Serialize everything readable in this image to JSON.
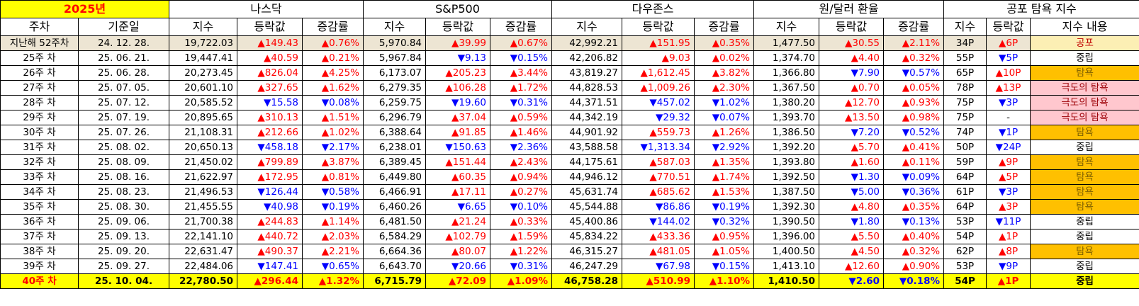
{
  "header": {
    "year": "2025년",
    "groups": [
      "나스닥",
      "S&P500",
      "다우존스",
      "원/달러 환율",
      "공포 탐욕 지수"
    ],
    "week_col": "주차",
    "date_col": "기준일",
    "index_col": "지수",
    "change_col": "등락값",
    "rate_col": "증감률",
    "fg_content_col": "지수 내용"
  },
  "rows": [
    {
      "week": "지난해 52주차",
      "date": "24. 12. 28.",
      "nasdaq": {
        "idx": "19,722.03",
        "chg": "▲149.43",
        "rate": "▲0.76%"
      },
      "sp500": {
        "idx": "5,970.84",
        "chg": "▲39.99",
        "rate": "▲0.67%"
      },
      "dow": {
        "idx": "42,992.21",
        "chg": "▲151.95",
        "rate": "▲0.35%"
      },
      "krw": {
        "idx": "1,477.50",
        "chg": "▲30.55",
        "rate": "▲2.11%"
      },
      "fg": {
        "idx": "34P",
        "chg": "▲6P",
        "text": "공포",
        "state": "fear"
      }
    },
    {
      "week": "25주 차",
      "date": "25. 06. 21.",
      "nasdaq": {
        "idx": "19,447.41",
        "chg": "▲40.59",
        "rate": "▲0.21%"
      },
      "sp500": {
        "idx": "5,967.84",
        "chg": "▼9.13",
        "rate": "▼0.15%"
      },
      "dow": {
        "idx": "42,206.82",
        "chg": "▲9.03",
        "rate": "▲0.02%"
      },
      "krw": {
        "idx": "1,374.70",
        "chg": "▲4.40",
        "rate": "▲0.32%"
      },
      "fg": {
        "idx": "55P",
        "chg": "▼5P",
        "text": "중립",
        "state": "neutral"
      }
    },
    {
      "week": "26주 차",
      "date": "25. 06. 28.",
      "nasdaq": {
        "idx": "20,273.45",
        "chg": "▲826.04",
        "rate": "▲4.25%"
      },
      "sp500": {
        "idx": "6,173.07",
        "chg": "▲205.23",
        "rate": "▲3.44%"
      },
      "dow": {
        "idx": "43,819.27",
        "chg": "▲1,612.45",
        "rate": "▲3.82%"
      },
      "krw": {
        "idx": "1,366.80",
        "chg": "▼7.90",
        "rate": "▼0.57%"
      },
      "fg": {
        "idx": "65P",
        "chg": "▲10P",
        "text": "탐욕",
        "state": "greed"
      }
    },
    {
      "week": "27주 차",
      "date": "25. 07. 05.",
      "nasdaq": {
        "idx": "20,601.10",
        "chg": "▲327.65",
        "rate": "▲1.62%"
      },
      "sp500": {
        "idx": "6,279.35",
        "chg": "▲106.28",
        "rate": "▲1.72%"
      },
      "dow": {
        "idx": "44,828.53",
        "chg": "▲1,009.26",
        "rate": "▲2.30%"
      },
      "krw": {
        "idx": "1,367.50",
        "chg": "▲0.70",
        "rate": "▲0.05%"
      },
      "fg": {
        "idx": "78P",
        "chg": "▲13P",
        "text": "극도의 탐욕",
        "state": "xgreed"
      }
    },
    {
      "week": "28주 차",
      "date": "25. 07. 12.",
      "nasdaq": {
        "idx": "20,585.52",
        "chg": "▼15.58",
        "rate": "▼0.08%"
      },
      "sp500": {
        "idx": "6,259.75",
        "chg": "▼19.60",
        "rate": "▼0.31%"
      },
      "dow": {
        "idx": "44,371.51",
        "chg": "▼457.02",
        "rate": "▼1.02%"
      },
      "krw": {
        "idx": "1,380.20",
        "chg": "▲12.70",
        "rate": "▲0.93%"
      },
      "fg": {
        "idx": "75P",
        "chg": "▼3P",
        "text": "극도의 탐욕",
        "state": "xgreed"
      }
    },
    {
      "week": "29주 차",
      "date": "25. 07. 19.",
      "nasdaq": {
        "idx": "20,895.65",
        "chg": "▲310.13",
        "rate": "▲1.51%"
      },
      "sp500": {
        "idx": "6,296.79",
        "chg": "▲37.04",
        "rate": "▲0.59%"
      },
      "dow": {
        "idx": "44,342.19",
        "chg": "▼29.32",
        "rate": "▼0.07%"
      },
      "krw": {
        "idx": "1,393.70",
        "chg": "▲13.50",
        "rate": "▲0.98%"
      },
      "fg": {
        "idx": "75P",
        "chg": "-",
        "text": "극도의 탐욕",
        "state": "xgreed"
      }
    },
    {
      "week": "30주 차",
      "date": "25. 07. 26.",
      "nasdaq": {
        "idx": "21,108.31",
        "chg": "▲212.66",
        "rate": "▲1.02%"
      },
      "sp500": {
        "idx": "6,388.64",
        "chg": "▲91.85",
        "rate": "▲1.46%"
      },
      "dow": {
        "idx": "44,901.92",
        "chg": "▲559.73",
        "rate": "▲1.26%"
      },
      "krw": {
        "idx": "1,386.50",
        "chg": "▼7.20",
        "rate": "▼0.52%"
      },
      "fg": {
        "idx": "74P",
        "chg": "▼1P",
        "text": "탐욕",
        "state": "greed"
      }
    },
    {
      "week": "31주 차",
      "date": "25. 08. 02.",
      "nasdaq": {
        "idx": "20,650.13",
        "chg": "▼458.18",
        "rate": "▼2.17%"
      },
      "sp500": {
        "idx": "6,238.01",
        "chg": "▼150.63",
        "rate": "▼2.36%"
      },
      "dow": {
        "idx": "43,588.58",
        "chg": "▼1,313.34",
        "rate": "▼2.92%"
      },
      "krw": {
        "idx": "1,392.20",
        "chg": "▲5.70",
        "rate": "▲0.41%"
      },
      "fg": {
        "idx": "50P",
        "chg": "▼24P",
        "text": "중립",
        "state": "neutral"
      }
    },
    {
      "week": "32주 차",
      "date": "25. 08. 09.",
      "nasdaq": {
        "idx": "21,450.02",
        "chg": "▲799.89",
        "rate": "▲3.87%"
      },
      "sp500": {
        "idx": "6,389.45",
        "chg": "▲151.44",
        "rate": "▲2.43%"
      },
      "dow": {
        "idx": "44,175.61",
        "chg": "▲587.03",
        "rate": "▲1.35%"
      },
      "krw": {
        "idx": "1,393.80",
        "chg": "▲1.60",
        "rate": "▲0.11%"
      },
      "fg": {
        "idx": "59P",
        "chg": "▲9P",
        "text": "탐욕",
        "state": "greed"
      }
    },
    {
      "week": "33주 차",
      "date": "25. 08. 16.",
      "nasdaq": {
        "idx": "21,622.97",
        "chg": "▲172.95",
        "rate": "▲0.81%"
      },
      "sp500": {
        "idx": "6,449.80",
        "chg": "▲60.35",
        "rate": "▲0.94%"
      },
      "dow": {
        "idx": "44,946.12",
        "chg": "▲770.51",
        "rate": "▲1.74%"
      },
      "krw": {
        "idx": "1,392.50",
        "chg": "▼1.30",
        "rate": "▼0.09%"
      },
      "fg": {
        "idx": "64P",
        "chg": "▲5P",
        "text": "탐욕",
        "state": "greed"
      }
    },
    {
      "week": "34주 차",
      "date": "25. 08. 23.",
      "nasdaq": {
        "idx": "21,496.53",
        "chg": "▼126.44",
        "rate": "▼0.58%"
      },
      "sp500": {
        "idx": "6,466.91",
        "chg": "▲17.11",
        "rate": "▲0.27%"
      },
      "dow": {
        "idx": "45,631.74",
        "chg": "▲685.62",
        "rate": "▲1.53%"
      },
      "krw": {
        "idx": "1,387.50",
        "chg": "▼5.00",
        "rate": "▼0.36%"
      },
      "fg": {
        "idx": "61P",
        "chg": "▼3P",
        "text": "탐욕",
        "state": "greed"
      }
    },
    {
      "week": "35주 차",
      "date": "25. 08. 30.",
      "nasdaq": {
        "idx": "21,455.55",
        "chg": "▼40.98",
        "rate": "▼0.19%"
      },
      "sp500": {
        "idx": "6,460.26",
        "chg": "▼6.65",
        "rate": "▼0.10%"
      },
      "dow": {
        "idx": "45,544.88",
        "chg": "▼86.86",
        "rate": "▼0.19%"
      },
      "krw": {
        "idx": "1,392.30",
        "chg": "▲4.80",
        "rate": "▲0.35%"
      },
      "fg": {
        "idx": "64P",
        "chg": "▲3P",
        "text": "탐욕",
        "state": "greed"
      }
    },
    {
      "week": "36주 차",
      "date": "25. 09. 06.",
      "nasdaq": {
        "idx": "21,700.38",
        "chg": "▲244.83",
        "rate": "▲1.14%"
      },
      "sp500": {
        "idx": "6,481.50",
        "chg": "▲21.24",
        "rate": "▲0.33%"
      },
      "dow": {
        "idx": "45,400.86",
        "chg": "▼144.02",
        "rate": "▼0.32%"
      },
      "krw": {
        "idx": "1,390.50",
        "chg": "▼1.80",
        "rate": "▼0.13%"
      },
      "fg": {
        "idx": "53P",
        "chg": "▼11P",
        "text": "중립",
        "state": "neutral"
      }
    },
    {
      "week": "37주 차",
      "date": "25. 09. 13.",
      "nasdaq": {
        "idx": "22,141.10",
        "chg": "▲440.72",
        "rate": "▲2.03%"
      },
      "sp500": {
        "idx": "6,584.29",
        "chg": "▲102.79",
        "rate": "▲1.59%"
      },
      "dow": {
        "idx": "45,834.22",
        "chg": "▲433.36",
        "rate": "▲0.95%"
      },
      "krw": {
        "idx": "1,396.00",
        "chg": "▲5.50",
        "rate": "▲0.40%"
      },
      "fg": {
        "idx": "54P",
        "chg": "▲1P",
        "text": "중립",
        "state": "neutral"
      }
    },
    {
      "week": "38주 차",
      "date": "25. 09. 20.",
      "nasdaq": {
        "idx": "22,631.47",
        "chg": "▲490.37",
        "rate": "▲2.21%"
      },
      "sp500": {
        "idx": "6,664.36",
        "chg": "▲80.07",
        "rate": "▲1.22%"
      },
      "dow": {
        "idx": "46,315.27",
        "chg": "▲481.05",
        "rate": "▲1.05%"
      },
      "krw": {
        "idx": "1,400.50",
        "chg": "▲4.50",
        "rate": "▲0.32%"
      },
      "fg": {
        "idx": "62P",
        "chg": "▲8P",
        "text": "탐욕",
        "state": "greed"
      }
    },
    {
      "week": "39주 차",
      "date": "25. 09. 27.",
      "nasdaq": {
        "idx": "22,484.06",
        "chg": "▼147.41",
        "rate": "▼0.65%"
      },
      "sp500": {
        "idx": "6,643.70",
        "chg": "▼20.66",
        "rate": "▼0.31%"
      },
      "dow": {
        "idx": "46,247.29",
        "chg": "▼67.98",
        "rate": "▼0.15%"
      },
      "krw": {
        "idx": "1,413.10",
        "chg": "▲12.60",
        "rate": "▲0.90%"
      },
      "fg": {
        "idx": "53P",
        "chg": "▼9P",
        "text": "중립",
        "state": "neutral"
      }
    },
    {
      "week": "40주 차",
      "date": "25. 10. 04.",
      "nasdaq": {
        "idx": "22,780.50",
        "chg": "▲296.44",
        "rate": "▲1.32%"
      },
      "sp500": {
        "idx": "6,715.79",
        "chg": "▲72.09",
        "rate": "▲1.09%"
      },
      "dow": {
        "idx": "46,758.28",
        "chg": "▲510.99",
        "rate": "▲1.10%"
      },
      "krw": {
        "idx": "1,410.50",
        "chg": "▼2.60",
        "rate": "▼0.18%"
      },
      "fg": {
        "idx": "54P",
        "chg": "▲1P",
        "text": "중립",
        "state": "neutral"
      }
    }
  ],
  "colors": {
    "up": "#ff0000",
    "down": "#0000ff",
    "year_bg": "#ffff00",
    "current_bg": "#ffff00",
    "greed": "#ffc000",
    "extreme_greed": "#ffc7ce",
    "fear": "#fcefb4",
    "prev_row_bg": "#ede5d3"
  }
}
